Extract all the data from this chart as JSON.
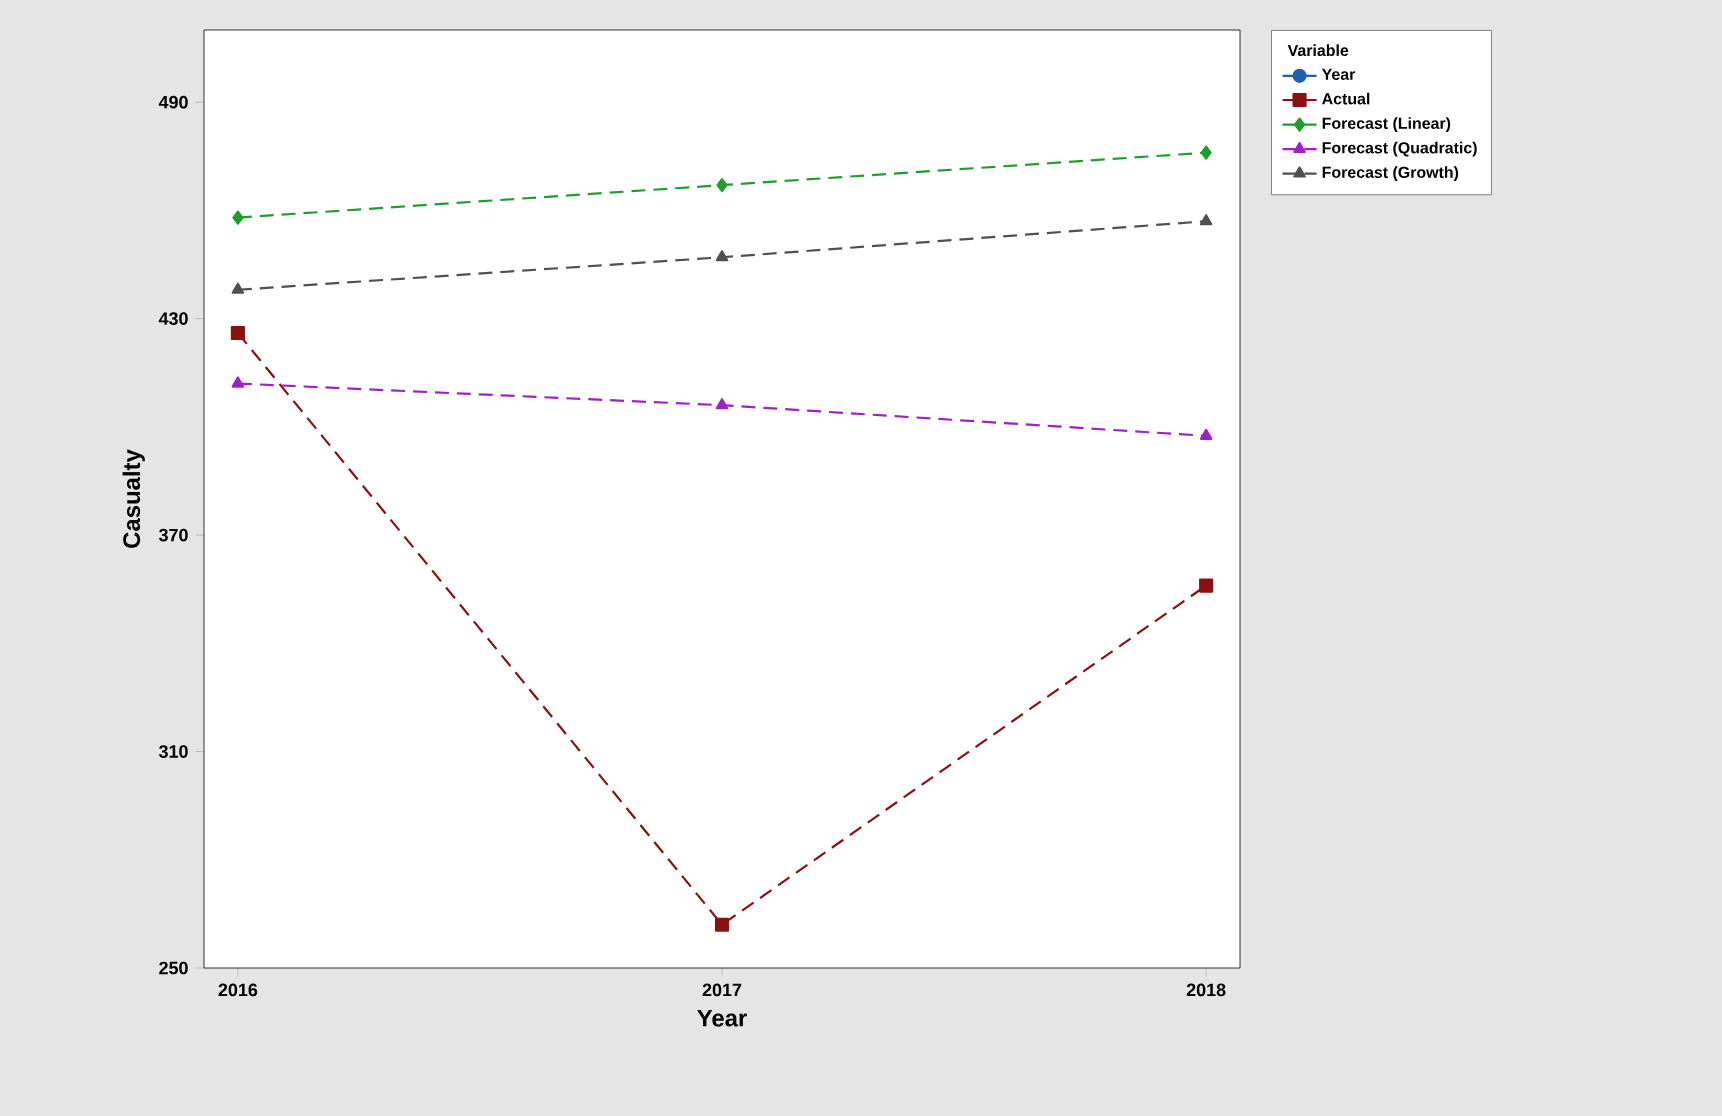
{
  "chart_data": {
    "type": "line",
    "xlabel": "Year",
    "ylabel": "Casualty",
    "legend_title": "Variable",
    "x": [
      2016,
      2017,
      2018
    ],
    "xlim": [
      2015.93,
      2018.07
    ],
    "ylim": [
      250,
      510
    ],
    "xticks": [
      2016,
      2017,
      2018
    ],
    "yticks": [
      250,
      310,
      370,
      430,
      490
    ],
    "grid": false,
    "legend": "right",
    "series": [
      {
        "name": "Year",
        "color": "#1f5fae",
        "values": [
          null,
          null,
          null
        ],
        "marker": "circle",
        "line_style": "solid"
      },
      {
        "name": "Actual",
        "color": "#8b1010",
        "values": [
          426,
          262,
          356
        ],
        "marker": "square",
        "line_style": "dashed"
      },
      {
        "name": "Forecast (Linear)",
        "color": "#1e9e2e",
        "values": [
          458,
          467,
          476
        ],
        "marker": "diamond",
        "line_style": "dashed"
      },
      {
        "name": "Forecast (Quadratic)",
        "color": "#a020c8",
        "values": [
          412,
          406,
          397.5
        ],
        "marker": "triangle",
        "line_style": "dashed"
      },
      {
        "name": "Forecast (Growth)",
        "color": "#505050",
        "values": [
          438,
          447,
          457
        ],
        "marker": "triangle",
        "line_style": "dashed"
      }
    ]
  }
}
